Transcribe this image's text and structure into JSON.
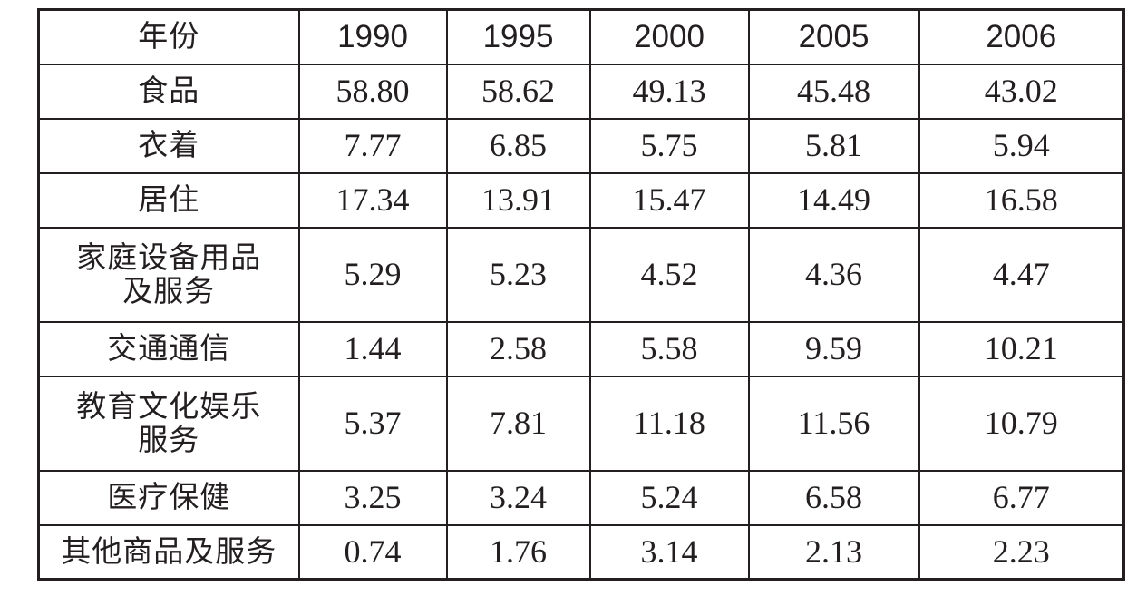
{
  "table": {
    "header_label": "年份",
    "years": [
      "1990",
      "1995",
      "2000",
      "2005",
      "2006"
    ],
    "rows": [
      {
        "label": "食品",
        "values": [
          "58.80",
          "58.62",
          "49.13",
          "45.48",
          "43.02"
        ]
      },
      {
        "label": "衣着",
        "values": [
          "7.77",
          "6.85",
          "5.75",
          "5.81",
          "5.94"
        ]
      },
      {
        "label": "居住",
        "values": [
          "17.34",
          "13.91",
          "15.47",
          "14.49",
          "16.58"
        ]
      },
      {
        "label": "家庭设备用品\n及服务",
        "values": [
          "5.29",
          "5.23",
          "4.52",
          "4.36",
          "4.47"
        ]
      },
      {
        "label": "交通通信",
        "values": [
          "1.44",
          "2.58",
          "5.58",
          "9.59",
          "10.21"
        ]
      },
      {
        "label": "教育文化娱乐\n服务",
        "values": [
          "5.37",
          "7.81",
          "11.18",
          "11.56",
          "10.79"
        ]
      },
      {
        "label": "医疗保健",
        "values": [
          "3.25",
          "3.24",
          "5.24",
          "6.58",
          "6.77"
        ]
      },
      {
        "label": "其他商品及服务",
        "values": [
          "0.74",
          "1.76",
          "3.14",
          "2.13",
          "2.23"
        ]
      }
    ]
  }
}
